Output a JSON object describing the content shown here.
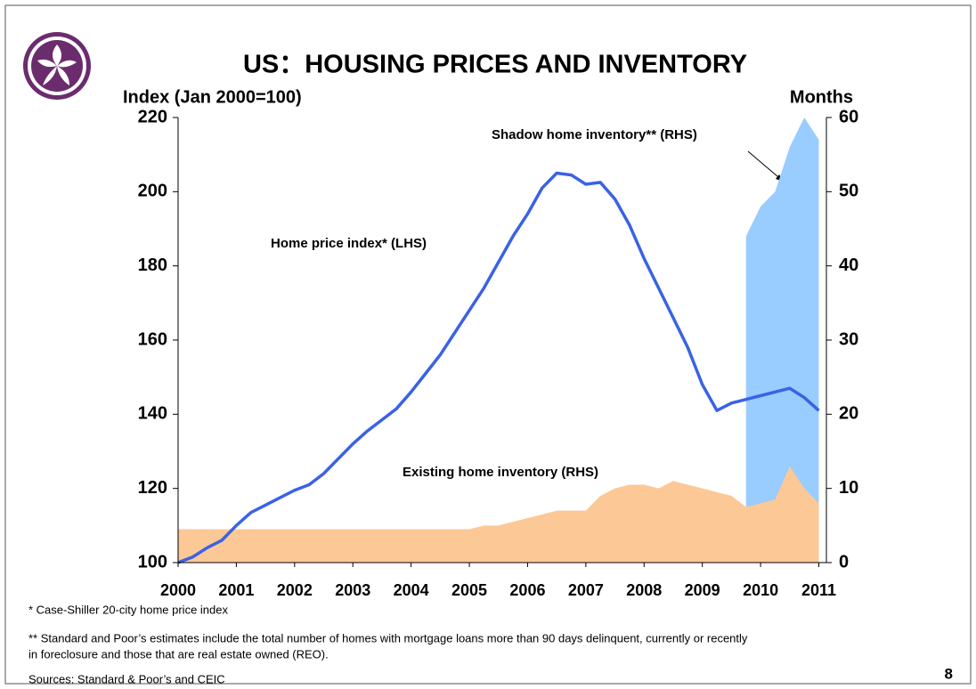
{
  "chart_data": {
    "type": "line",
    "title": "US：HOUSING PRICES AND INVENTORY",
    "y_label": "Index (Jan 2000=100)",
    "y2_label": "Months",
    "x": [
      2000,
      2000.25,
      2000.5,
      2000.75,
      2001,
      2001.25,
      2001.5,
      2001.75,
      2002,
      2002.25,
      2002.5,
      2002.75,
      2003,
      2003.25,
      2003.5,
      2003.75,
      2004,
      2004.25,
      2004.5,
      2004.75,
      2005,
      2005.25,
      2005.5,
      2005.75,
      2006,
      2006.25,
      2006.5,
      2006.75,
      2007,
      2007.25,
      2007.5,
      2007.75,
      2008,
      2008.25,
      2008.5,
      2008.75,
      2009,
      2009.25,
      2009.5,
      2009.75,
      2010,
      2010.25,
      2010.5,
      2010.75,
      2011
    ],
    "series": [
      {
        "name": "Home price index* (LHS)",
        "color": "#3a62e6",
        "kind": "line",
        "values": [
          100,
          101.5,
          104,
          106,
          110,
          113.5,
          115.5,
          117.5,
          119.5,
          121,
          124,
          128,
          132,
          135.5,
          138.5,
          141.5,
          146,
          151,
          156,
          162,
          168,
          174,
          181,
          188,
          194,
          201,
          205,
          204.5,
          202,
          202.5,
          198,
          191,
          182,
          174,
          166,
          158,
          148,
          141,
          143,
          144,
          145,
          146,
          147,
          144.5,
          141
        ]
      },
      {
        "name": "Shadow home inventory** (RHS)",
        "color": "#99ccff",
        "kind": "area",
        "axis": "y2",
        "values": [
          null,
          null,
          null,
          null,
          null,
          null,
          null,
          null,
          null,
          null,
          null,
          null,
          null,
          null,
          null,
          null,
          null,
          null,
          null,
          null,
          null,
          null,
          null,
          null,
          null,
          null,
          null,
          null,
          null,
          null,
          null,
          null,
          null,
          null,
          null,
          null,
          null,
          null,
          null,
          44,
          48,
          50,
          56,
          60,
          57
        ]
      },
      {
        "name": "Existing home inventory (RHS)",
        "color": "#fcc896",
        "kind": "area",
        "axis": "y2",
        "values": [
          4.5,
          4.5,
          4.5,
          4.5,
          4.5,
          4.5,
          4.5,
          4.5,
          4.5,
          4.5,
          4.5,
          4.5,
          4.5,
          4.5,
          4.5,
          4.5,
          4.5,
          4.5,
          4.5,
          4.5,
          4.5,
          5,
          5,
          5.5,
          6,
          6.5,
          7,
          7,
          7,
          9,
          10,
          10.5,
          10.5,
          10,
          11,
          10.5,
          10,
          9.5,
          9,
          7.5,
          8,
          8.5,
          13,
          10,
          8
        ]
      }
    ],
    "xlim": [
      2000,
      2011.13
    ],
    "xticks": [
      2000,
      2001,
      2002,
      2003,
      2004,
      2005,
      2006,
      2007,
      2008,
      2009,
      2010,
      2011
    ],
    "ylim": [
      100,
      220
    ],
    "yticks": [
      100,
      120,
      140,
      160,
      180,
      200,
      220
    ],
    "y2lim": [
      0,
      60
    ],
    "y2ticks": [
      0,
      10,
      20,
      30,
      40,
      50,
      60
    ],
    "footnotes": [
      "* Case-Shiller 20-city home price index",
      "** Standard and Poor’s estimates include the total number of homes with mortgage loans more than 90 days delinquent, currently or recently",
      "in foreclosure and those that are real estate owned (REO).",
      "Sources: Standard & Poor’s and CEIC"
    ],
    "page_number": "8"
  }
}
